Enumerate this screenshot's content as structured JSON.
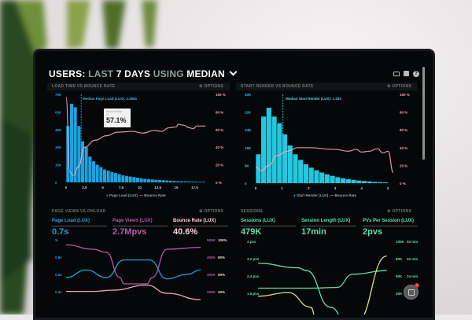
{
  "header": {
    "title_a": "USERS:",
    "title_b": " LAST ",
    "title_c": "7 DAYS",
    "title_d": " USING ",
    "title_e": "MEDIAN",
    "chevron": "⌄",
    "icons": [
      "monitor-icon",
      "image-icon",
      "help-icon"
    ]
  },
  "options_label": "⚙ OPTIONS",
  "colors": {
    "blue": "#1aa3e0",
    "cyan": "#22c8e0",
    "pink": "#f4a6b8",
    "purple": "#b35ca8",
    "green": "#62e0a8",
    "yellow": "#d9e08a"
  },
  "panels": {
    "load": {
      "title": "LOAD TIME VS BOUNCE RATE",
      "median": "Median Page Load (LUX): 2.056s",
      "tooltip_label": "Bounce Rate",
      "tooltip_sub": "%",
      "tooltip_value": "57.1%",
      "legend": [
        "Page Load (LUX)",
        "Bounce Rate"
      ],
      "yleft": [
        "75K",
        "60K",
        "45K",
        "30K",
        "15K",
        "0"
      ],
      "yright": [
        "100 %",
        "80 %",
        "60 %",
        "40 %",
        "20 %",
        "0 %"
      ],
      "xticks": [
        "0",
        "2.5",
        "5",
        "7.5",
        "10",
        "12.5",
        "15",
        "17.5"
      ]
    },
    "render": {
      "title": "START RENDER VS BOUNCE RATE",
      "median": "Median Start Render (LUX): 1.03s",
      "legend": [
        "Start Render (LUX)",
        "Bounce Rate"
      ],
      "yleft": [
        "40K",
        "32K",
        "24K",
        "16K",
        "8K",
        "0"
      ],
      "yright": [
        "100 %",
        "80 %",
        "60 %",
        "40 %",
        "20 %",
        "0 %"
      ],
      "xticks": [
        "0",
        "1",
        "2",
        "3",
        "4",
        "5"
      ]
    },
    "pageviews": {
      "title": "PAGE VIEWS VS ONLOAD",
      "kpis": [
        {
          "label": "Page Load (LUX)",
          "value": "0.7s"
        },
        {
          "label": "Page Views (LUX)",
          "value": "2.7Mpvs"
        },
        {
          "label": "Bounce Rate (LUX)",
          "value": "40.6%"
        }
      ],
      "yleft": [
        "%",
        "0.8s",
        "0.6s",
        "0.4s"
      ],
      "yright1": [
        "500K",
        "400K",
        "300K",
        "200K"
      ],
      "yright2": [
        "100%",
        "80%",
        "60%",
        "40%"
      ]
    },
    "sessions": {
      "title": "SESSIONS",
      "kpis": [
        {
          "label": "Sessions (LUX)",
          "value": "479K"
        },
        {
          "label": "Session Length (LUX)",
          "value": "17min"
        },
        {
          "label": "PVs Per Session (LUX)",
          "value": "2pvs"
        }
      ],
      "yleft": [
        "4 pvs",
        "3.2 pvs",
        "2.4 pvs",
        "1.6 pvs"
      ],
      "yright1": [
        "100K",
        "80K",
        "60K",
        "40K"
      ],
      "yright2": [
        "40 min",
        "32 min",
        "24 min"
      ]
    }
  },
  "chart_data": [
    {
      "type": "bar",
      "title": "LOAD TIME VS BOUNCE RATE",
      "xlim": [
        0,
        19.5
      ],
      "ylim": [
        0,
        75000
      ],
      "y2lim": [
        0,
        100
      ],
      "bin_width": 0.5,
      "series": [
        {
          "name": "Page Load (LUX)",
          "values": [
            48000,
            67000,
            64000,
            48000,
            35000,
            30000,
            22000,
            18000,
            15000,
            13000,
            11000,
            10000,
            9000,
            8000,
            7000,
            6000,
            5500,
            5000,
            4500,
            4000,
            3500,
            3000,
            2800,
            2500,
            2200,
            2000,
            1800,
            1600,
            1400,
            1200,
            1100,
            1000,
            900,
            800,
            700,
            600,
            550,
            500
          ]
        },
        {
          "name": "Bounce Rate",
          "type": "line",
          "points": [
            [
              0,
              97
            ],
            [
              0.5,
              12
            ],
            [
              1,
              8
            ],
            [
              1.7,
              18
            ],
            [
              2.5,
              40
            ],
            [
              4,
              48
            ],
            [
              5.5,
              53
            ],
            [
              7,
              57
            ],
            [
              9,
              58
            ],
            [
              10.5,
              56
            ],
            [
              12,
              59
            ],
            [
              13,
              58
            ],
            [
              14,
              62
            ],
            [
              15,
              63
            ],
            [
              15.3,
              66
            ],
            [
              16,
              65
            ],
            [
              16.8,
              62
            ],
            [
              17.3,
              61
            ],
            [
              17.8,
              64
            ],
            [
              19,
              64
            ]
          ]
        }
      ],
      "median": 2.056
    },
    {
      "type": "bar",
      "title": "START RENDER VS BOUNCE RATE",
      "xlim": [
        0,
        5.2
      ],
      "ylim": [
        0,
        40000
      ],
      "y2lim": [
        0,
        100
      ],
      "bin_width": 0.2,
      "series": [
        {
          "name": "Start Render (LUX)",
          "values": [
            13000,
            30000,
            34000,
            30000,
            27000,
            22000,
            17000,
            13000,
            10500,
            8500,
            7000,
            5800,
            4800,
            4000,
            3300,
            2700,
            2200,
            1800,
            1500,
            1200,
            1000,
            800,
            600,
            500,
            400
          ]
        },
        {
          "name": "Bounce Rate",
          "type": "line",
          "points": [
            [
              0,
              18
            ],
            [
              0.2,
              14
            ],
            [
              0.5,
              20
            ],
            [
              0.8,
              31
            ],
            [
              1.2,
              36
            ],
            [
              1.6,
              40
            ],
            [
              2,
              40
            ],
            [
              3,
              38
            ],
            [
              3.5,
              36
            ],
            [
              3.8,
              38
            ],
            [
              4,
              35
            ],
            [
              4.3,
              36
            ],
            [
              4.6,
              39
            ],
            [
              4.8,
              34
            ],
            [
              5,
              36
            ],
            [
              5.2,
              12
            ]
          ]
        }
      ],
      "median": 1.03
    },
    {
      "type": "line",
      "title": "PAGE VIEWS VS ONLOAD",
      "xlim": [
        0,
        10
      ],
      "ylim": [
        0,
        100
      ],
      "series": [
        {
          "name": "Page Load (LUX)",
          "color": "blue",
          "points": [
            [
              0,
              40
            ],
            [
              1.5,
              52
            ],
            [
              3,
              40
            ],
            [
              4.3,
              68
            ],
            [
              6.2,
              68
            ],
            [
              7.5,
              38
            ],
            [
              9,
              45
            ],
            [
              10,
              52
            ]
          ]
        },
        {
          "name": "Page Views (LUX)",
          "color": "purple",
          "points": [
            [
              0,
              92
            ],
            [
              2,
              85
            ],
            [
              3,
              80
            ],
            [
              4,
              40
            ],
            [
              4.3,
              30
            ],
            [
              6,
              30
            ],
            [
              6.4,
              40
            ],
            [
              7.5,
              85
            ],
            [
              10,
              88
            ]
          ]
        },
        {
          "name": "Bounce Rate (LUX)",
          "color": "pink",
          "points": [
            [
              0,
              18
            ],
            [
              2,
              18
            ],
            [
              3.5,
              20
            ],
            [
              6,
              28
            ],
            [
              7.5,
              15
            ],
            [
              10,
              5
            ]
          ]
        }
      ]
    },
    {
      "type": "line",
      "title": "SESSIONS",
      "xlim": [
        0,
        10
      ],
      "ylim": [
        0,
        100
      ],
      "series": [
        {
          "name": "Sessions (LUX)",
          "color": "green",
          "points": [
            [
              0,
              70
            ],
            [
              3,
              64
            ],
            [
              3.7,
              60
            ],
            [
              5.5,
              10
            ],
            [
              7,
              -20
            ]
          ]
        },
        {
          "name": "Session Length (LUX)",
          "color": "green",
          "points": [
            [
              0,
              36
            ],
            [
              4,
              36
            ],
            [
              6,
              37
            ],
            [
              7.2,
              55
            ],
            [
              9.8,
              60
            ]
          ]
        },
        {
          "name": "PVs Per Session (LUX)",
          "color": "yellow",
          "points": [
            [
              0,
              25
            ],
            [
              2.3,
              30
            ],
            [
              4,
              10
            ],
            [
              4.5,
              -10
            ],
            [
              7.5,
              -10
            ],
            [
              9.8,
              80
            ]
          ]
        }
      ]
    }
  ],
  "notification_count": "1"
}
